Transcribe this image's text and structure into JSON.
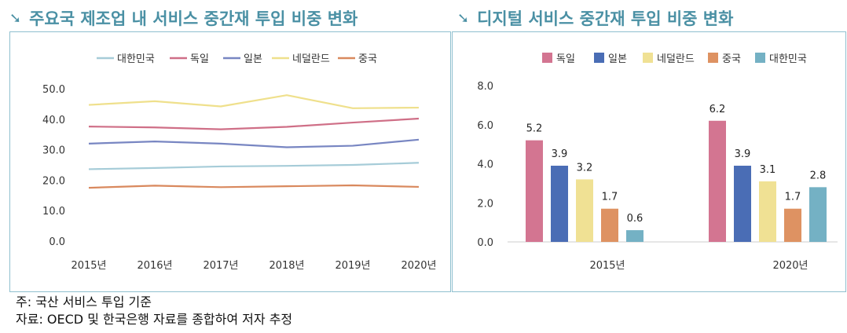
{
  "titles": {
    "left": "주요국 제조업 내 서비스 중간재 투입 비중 변화",
    "right": "디지털 서비스 중간재 투입 비중 변화",
    "arrow_icon": "➘"
  },
  "notes": {
    "line1": "주: 국산 서비스 투입 기준",
    "line2": "자료: OECD 및 한국은행 자료를 종합하여 저자 추정"
  },
  "colors": {
    "korea": "#a6ccd8",
    "germany": "#cf6f87",
    "japan": "#7886c2",
    "netherlands": "#efe08c",
    "china": "#d9895e",
    "frame": "#8fc0cf",
    "title": "#4a90a4"
  },
  "chart_data": [
    {
      "type": "line",
      "title": "주요국 제조업 내 서비스 중간재 투입 비중 변화",
      "categories": [
        "2015년",
        "2016년",
        "2017년",
        "2018년",
        "2019년",
        "2020년"
      ],
      "ylim": [
        0,
        50
      ],
      "yticks": [
        "0.0",
        "10.0",
        "20.0",
        "30.0",
        "40.0",
        "50.0"
      ],
      "grid": false,
      "legend": "top",
      "series": [
        {
          "name": "대한민국",
          "key": "korea",
          "values": [
            23.6,
            24.0,
            24.5,
            24.7,
            25.0,
            25.7
          ]
        },
        {
          "name": "독일",
          "key": "germany",
          "values": [
            37.6,
            37.3,
            36.7,
            37.5,
            38.9,
            40.2
          ]
        },
        {
          "name": "일본",
          "key": "japan",
          "values": [
            32.0,
            32.7,
            32.0,
            30.8,
            31.3,
            33.3
          ]
        },
        {
          "name": "네덜란드",
          "key": "netherlands",
          "values": [
            44.7,
            45.9,
            44.2,
            47.9,
            43.6,
            43.8
          ]
        },
        {
          "name": "중국",
          "key": "china",
          "values": [
            17.5,
            18.2,
            17.7,
            18.0,
            18.3,
            17.8
          ]
        }
      ]
    },
    {
      "type": "bar",
      "title": "디지털 서비스 중간재 투입 비중 변화",
      "categories": [
        "2015년",
        "2020년"
      ],
      "ylim": [
        0,
        8
      ],
      "yticks": [
        "0.0",
        "2.0",
        "4.0",
        "6.0",
        "8.0"
      ],
      "grid": false,
      "legend": "top",
      "series": [
        {
          "name": "독일",
          "key": "germany",
          "values": [
            5.2,
            6.2
          ],
          "labels": [
            "5.2",
            "6.2"
          ]
        },
        {
          "name": "일본",
          "key": "japan_bar",
          "values": [
            3.9,
            3.9
          ],
          "labels": [
            "3.9",
            "3.9"
          ]
        },
        {
          "name": "네덜란드",
          "key": "netherlands",
          "values": [
            3.2,
            3.1
          ],
          "labels": [
            "3.2",
            "3.1"
          ]
        },
        {
          "name": "중국",
          "key": "china",
          "values": [
            1.7,
            1.7
          ],
          "labels": [
            "1.7",
            "1.7"
          ]
        },
        {
          "name": "대한민국",
          "key": "korea_bar",
          "values": [
            0.6,
            2.8
          ],
          "labels": [
            "0.6",
            "2.8"
          ]
        }
      ],
      "bar_colors": {
        "germany": "#d37591",
        "japan_bar": "#4a6db5",
        "netherlands": "#f0e194",
        "china": "#de9262",
        "korea_bar": "#74b1c4"
      }
    }
  ]
}
